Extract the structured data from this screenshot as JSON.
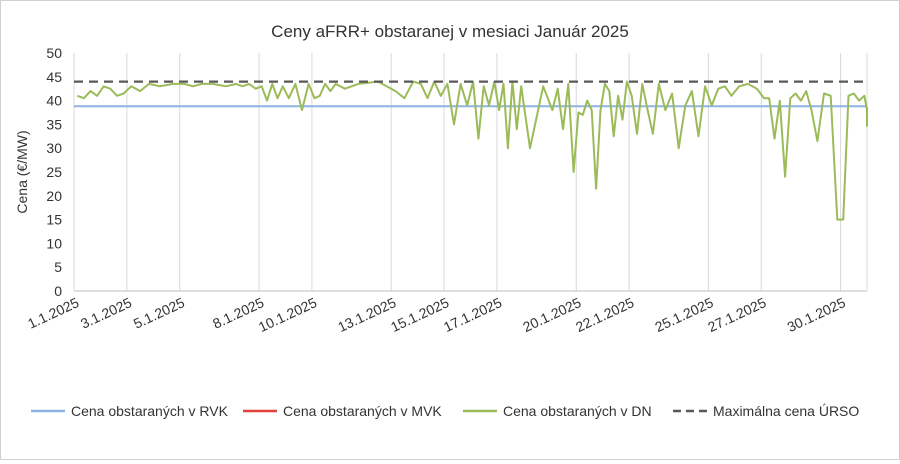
{
  "chart_data": {
    "type": "line",
    "title": "Ceny aFRR+ obstaranej v mesiaci Január 2025",
    "ylabel": "Cena (€/MW)",
    "xlabel": "",
    "ylim": [
      0,
      50
    ],
    "yticks": [
      0,
      5,
      10,
      15,
      20,
      25,
      30,
      35,
      40,
      45,
      50
    ],
    "xlim": [
      "1.1.2025",
      "31.1.2025"
    ],
    "xtick_labels": [
      "1.1.2025",
      "3.1.2025",
      "5.1.2025",
      "8.1.2025",
      "10.1.2025",
      "13.1.2025",
      "15.1.2025",
      "17.1.2025",
      "20.1.2025",
      "22.1.2025",
      "25.1.2025",
      "27.1.2025",
      "30.1.2025"
    ],
    "grid": "vertical",
    "legend_position": "bottom",
    "colors": {
      "rvk": "#8db4e2",
      "mvk": "#e0403a",
      "dn": "#9bbb59",
      "max": "#595959"
    },
    "series": [
      {
        "name": "Cena obstaraných v RVK",
        "key": "rvk",
        "style": "solid",
        "x": [
          "1.1.2025",
          "31.1.2025"
        ],
        "values": [
          38.8,
          38.8
        ]
      },
      {
        "name": "Cena obstaraných v MVK",
        "key": "mvk",
        "style": "solid",
        "x": [],
        "values": []
      },
      {
        "name": "Cena obstaraných v DN",
        "key": "dn",
        "style": "solid",
        "x": [
          "1.1.2025",
          "1.1.2025",
          "1.1.2025",
          "1.1.2025",
          "2.1.2025",
          "2.1.2025",
          "2.1.2025",
          "2.1.2025",
          "3.1.2025",
          "3.1.2025",
          "3.1.2025",
          "4.1.2025",
          "4.1.2025",
          "5.1.2025",
          "5.1.2025",
          "5.1.2025",
          "6.1.2025",
          "6.1.2025",
          "7.1.2025",
          "7.1.2025",
          "7.1.2025",
          "7.1.2025",
          "8.1.2025",
          "8.1.2025",
          "8.1.2025",
          "8.1.2025",
          "8.1.2025",
          "9.1.2025",
          "9.1.2025",
          "9.1.2025",
          "9.1.2025",
          "10.1.2025",
          "10.1.2025",
          "10.1.2025",
          "10.1.2025",
          "10.1.2025",
          "11.1.2025",
          "11.1.2025",
          "12.1.2025",
          "13.1.2025",
          "13.1.2025",
          "13.1.2025",
          "14.1.2025",
          "14.1.2025",
          "14.1.2025",
          "14.1.2025",
          "15.1.2025",
          "15.1.2025",
          "15.1.2025",
          "15.1.2025",
          "16.1.2025",
          "16.1.2025",
          "16.1.2025",
          "16.1.2025",
          "16.1.2025",
          "17.1.2025",
          "17.1.2025",
          "17.1.2025",
          "17.1.2025",
          "17.1.2025",
          "17.1.2025",
          "18.1.2025",
          "18.1.2025",
          "19.1.2025",
          "19.1.2025",
          "19.1.2025",
          "19.1.2025",
          "19.1.2025",
          "20.1.2025",
          "20.1.2025",
          "20.1.2025",
          "20.1.2025",
          "20.1.2025",
          "20.1.2025",
          "21.1.2025",
          "21.1.2025",
          "21.1.2025",
          "21.1.2025",
          "21.1.2025",
          "21.1.2025",
          "22.1.2025",
          "22.1.2025",
          "22.1.2025",
          "22.1.2025",
          "22.1.2025",
          "23.1.2025",
          "23.1.2025",
          "23.1.2025",
          "23.1.2025",
          "24.1.2025",
          "24.1.2025",
          "24.1.2025",
          "24.1.2025",
          "25.1.2025",
          "25.1.2025",
          "25.1.2025",
          "25.1.2025",
          "26.1.2025",
          "26.1.2025",
          "26.1.2025",
          "27.1.2025",
          "27.1.2025",
          "27.1.2025",
          "27.1.2025",
          "27.1.2025",
          "28.1.2025",
          "28.1.2025",
          "28.1.2025",
          "28.1.2025",
          "28.1.2025",
          "29.1.2025",
          "29.1.2025",
          "29.1.2025",
          "29.1.2025",
          "30.1.2025",
          "30.1.2025",
          "30.1.2025",
          "30.1.2025",
          "30.1.2025",
          "31.1.2025",
          "31.1.2025",
          "31.1.2025",
          "31.1.2025",
          "31.1.2025",
          "31.1.2025",
          "31.1.2025"
        ],
        "values": [
          41.0,
          40.5,
          42.0,
          41.0,
          43.0,
          42.5,
          41.0,
          41.5,
          43.0,
          42.0,
          43.5,
          43.0,
          43.5,
          43.5,
          43.0,
          43.5,
          43.5,
          43.0,
          43.5,
          43.0,
          43.5,
          42.5,
          43.0,
          40.0,
          43.5,
          40.5,
          43.0,
          40.5,
          43.5,
          38.0,
          43.5,
          40.5,
          41.0,
          43.5,
          42.0,
          43.5,
          42.5,
          43.5,
          44.0,
          42.0,
          40.5,
          44.0,
          43.5,
          40.5,
          44.0,
          41.0,
          43.5,
          35.0,
          43.5,
          39.0,
          44.0,
          32.0,
          43.0,
          39.0,
          44.0,
          38.0,
          43.5,
          30.0,
          44.0,
          34.0,
          43.0,
          30.0,
          43.0,
          38.0,
          42.5,
          34.0,
          43.5,
          25.0,
          37.5,
          37.0,
          40.0,
          38.0,
          21.5,
          38.0,
          43.5,
          42.0,
          32.5,
          41.0,
          36.0,
          44.0,
          41.0,
          33.0,
          43.5,
          38.0,
          33.0,
          43.5,
          38.0,
          41.5,
          30.0,
          39.0,
          42.0,
          32.5,
          43.0,
          39.0,
          42.5,
          43.0,
          41.0,
          43.0,
          43.5,
          42.5,
          40.5,
          40.5,
          32.0,
          40.0,
          24.0,
          40.5,
          41.5,
          40.0,
          42.0,
          38.0,
          31.5,
          41.5,
          41.0,
          15.0,
          15.0,
          41.0,
          41.5,
          40.0,
          41.0,
          38.0,
          36.0,
          38.0,
          38.5,
          38.0,
          38.5,
          34.5
        ]
      },
      {
        "name": "Maximálna cena ÚRSO",
        "key": "max",
        "style": "dashed",
        "x": [
          "1.1.2025",
          "31.1.2025"
        ],
        "values": [
          44.0,
          44.0
        ]
      }
    ]
  }
}
